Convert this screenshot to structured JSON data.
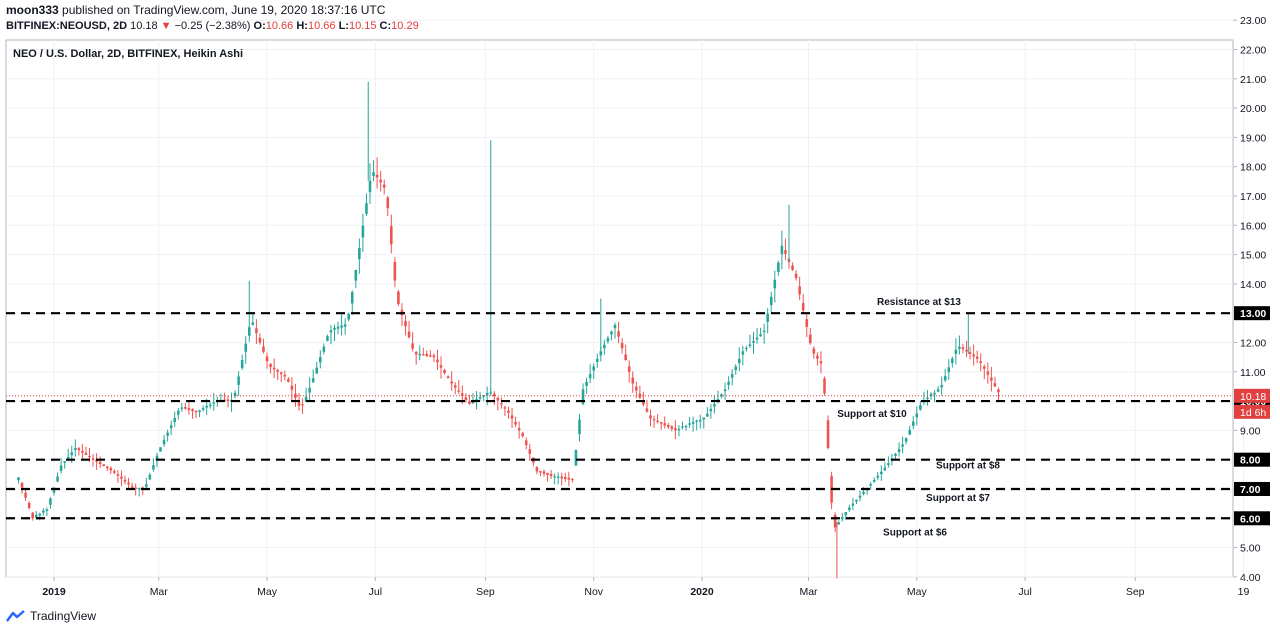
{
  "header": {
    "author": "moon333",
    "published_text": "published on TradingView.com, June 19, 2020 18:37:16 UTC",
    "symbol": "BITFINEX:NEOUSD, 2D",
    "last": "10.18",
    "change": "−0.25 (−2.38%)",
    "o_label": "O:",
    "o": "10.66",
    "h_label": "H:",
    "h": "10.66",
    "l_label": "L:",
    "l": "10.15",
    "c_label": "C:",
    "c": "10.29"
  },
  "footer": {
    "brand": "TradingView"
  },
  "chart_data": {
    "type": "candlestick",
    "title": "NEO / U.S. Dollar, 2D, BITFINEX, Heikin Ashi",
    "ylim": [
      3.4,
      23.4
    ],
    "y_ticks": [
      "4.00",
      "5.00",
      "6.00",
      "7.00",
      "8.00",
      "9.00",
      "10.00",
      "11.00",
      "12.00",
      "13.00",
      "14.00",
      "15.00",
      "16.00",
      "17.00",
      "18.00",
      "19.00",
      "20.00",
      "21.00",
      "22.00",
      "23.00"
    ],
    "x_ticks": [
      {
        "label": "2019",
        "bold": true,
        "date": "2019-01-01"
      },
      {
        "label": "Mar",
        "bold": false,
        "date": "2019-03-01"
      },
      {
        "label": "May",
        "bold": false,
        "date": "2019-05-01"
      },
      {
        "label": "Jul",
        "bold": false,
        "date": "2019-07-01"
      },
      {
        "label": "Sep",
        "bold": false,
        "date": "2019-09-01"
      },
      {
        "label": "Nov",
        "bold": false,
        "date": "2019-11-01"
      },
      {
        "label": "2020",
        "bold": true,
        "date": "2020-01-01"
      },
      {
        "label": "Mar",
        "bold": false,
        "date": "2020-03-01"
      },
      {
        "label": "May",
        "bold": false,
        "date": "2020-05-01"
      },
      {
        "label": "Jul",
        "bold": false,
        "date": "2020-07-01"
      },
      {
        "label": "Sep",
        "bold": false,
        "date": "2020-09-01"
      },
      {
        "label": "19",
        "bold": false,
        "date": "2020-11-01"
      }
    ],
    "levels": [
      {
        "price": 13,
        "label": "Resistance at $13",
        "axis_label": "13.00"
      },
      {
        "price": 10,
        "label": "Support at $10",
        "axis_label": "10.00"
      },
      {
        "price": 8,
        "label": "Support at $8",
        "axis_label": "8.00"
      },
      {
        "price": 7,
        "label": "Support at $7",
        "axis_label": "7.00"
      },
      {
        "price": 6,
        "label": "Support at $6",
        "axis_label": "6.00"
      }
    ],
    "current_price": {
      "value": 10.18,
      "label": "10.18",
      "countdown": "1d 6h"
    },
    "colors": {
      "up": "#26a69a",
      "down": "#ef5350",
      "grid": "#eef1f6",
      "axis_text": "#131722",
      "level": "#000000",
      "price_line": "#e0403f"
    },
    "anchors": [
      [
        "2018-12-12",
        7.4
      ],
      [
        "2018-12-20",
        6.0
      ],
      [
        "2018-12-28",
        6.3
      ],
      [
        "2019-01-05",
        7.8
      ],
      [
        "2019-01-13",
        8.4
      ],
      [
        "2019-01-23",
        8.0
      ],
      [
        "2019-02-03",
        7.6
      ],
      [
        "2019-02-15",
        7.0
      ],
      [
        "2019-02-21",
        7.0
      ],
      [
        "2019-03-01",
        8.3
      ],
      [
        "2019-03-13",
        9.8
      ],
      [
        "2019-03-23",
        9.6
      ],
      [
        "2019-04-02",
        10.0
      ],
      [
        "2019-04-12",
        10.0
      ],
      [
        "2019-04-22",
        12.8
      ],
      [
        "2019-05-02",
        11.2
      ],
      [
        "2019-05-12",
        10.8
      ],
      [
        "2019-05-20",
        9.7
      ],
      [
        "2019-05-26",
        10.6
      ],
      [
        "2019-06-05",
        12.4
      ],
      [
        "2019-06-15",
        12.6
      ],
      [
        "2019-06-23",
        15.6
      ],
      [
        "2019-06-29",
        17.9
      ],
      [
        "2019-07-07",
        17.2
      ],
      [
        "2019-07-13",
        13.5
      ],
      [
        "2019-07-23",
        11.6
      ],
      [
        "2019-08-03",
        11.5
      ],
      [
        "2019-08-13",
        10.6
      ],
      [
        "2019-08-23",
        9.9
      ],
      [
        "2019-09-04",
        10.3
      ],
      [
        "2019-09-14",
        9.6
      ],
      [
        "2019-09-22",
        8.8
      ],
      [
        "2019-09-30",
        7.6
      ],
      [
        "2019-10-10",
        7.4
      ],
      [
        "2019-10-20",
        7.3
      ],
      [
        "2019-10-26",
        10.4
      ],
      [
        "2019-11-05",
        11.7
      ],
      [
        "2019-11-13",
        12.6
      ],
      [
        "2019-11-23",
        10.6
      ],
      [
        "2019-12-03",
        9.4
      ],
      [
        "2019-12-17",
        9.0
      ],
      [
        "2020-01-02",
        9.4
      ],
      [
        "2020-01-14",
        10.4
      ],
      [
        "2020-01-24",
        11.7
      ],
      [
        "2020-02-05",
        12.4
      ],
      [
        "2020-02-15",
        15.3
      ],
      [
        "2020-02-23",
        14.2
      ],
      [
        "2020-03-03",
        11.7
      ],
      [
        "2020-03-09",
        11.2
      ],
      [
        "2020-03-15",
        5.6
      ],
      [
        "2020-03-23",
        6.3
      ],
      [
        "2020-04-04",
        7.1
      ],
      [
        "2020-04-14",
        7.8
      ],
      [
        "2020-04-24",
        8.6
      ],
      [
        "2020-05-04",
        10.0
      ],
      [
        "2020-05-14",
        10.4
      ],
      [
        "2020-05-24",
        11.9
      ],
      [
        "2020-06-05",
        11.4
      ],
      [
        "2020-06-17",
        10.2
      ]
    ],
    "spikes": [
      {
        "date": "2019-04-21",
        "high": 14.1
      },
      {
        "date": "2019-06-27",
        "high": 20.9
      },
      {
        "date": "2019-09-04",
        "high": 18.9
      },
      {
        "date": "2019-11-05",
        "high": 13.5
      },
      {
        "date": "2020-02-19",
        "high": 16.7
      },
      {
        "date": "2020-03-17",
        "low": 3.95
      },
      {
        "date": "2020-05-30",
        "high": 13.0
      }
    ]
  }
}
